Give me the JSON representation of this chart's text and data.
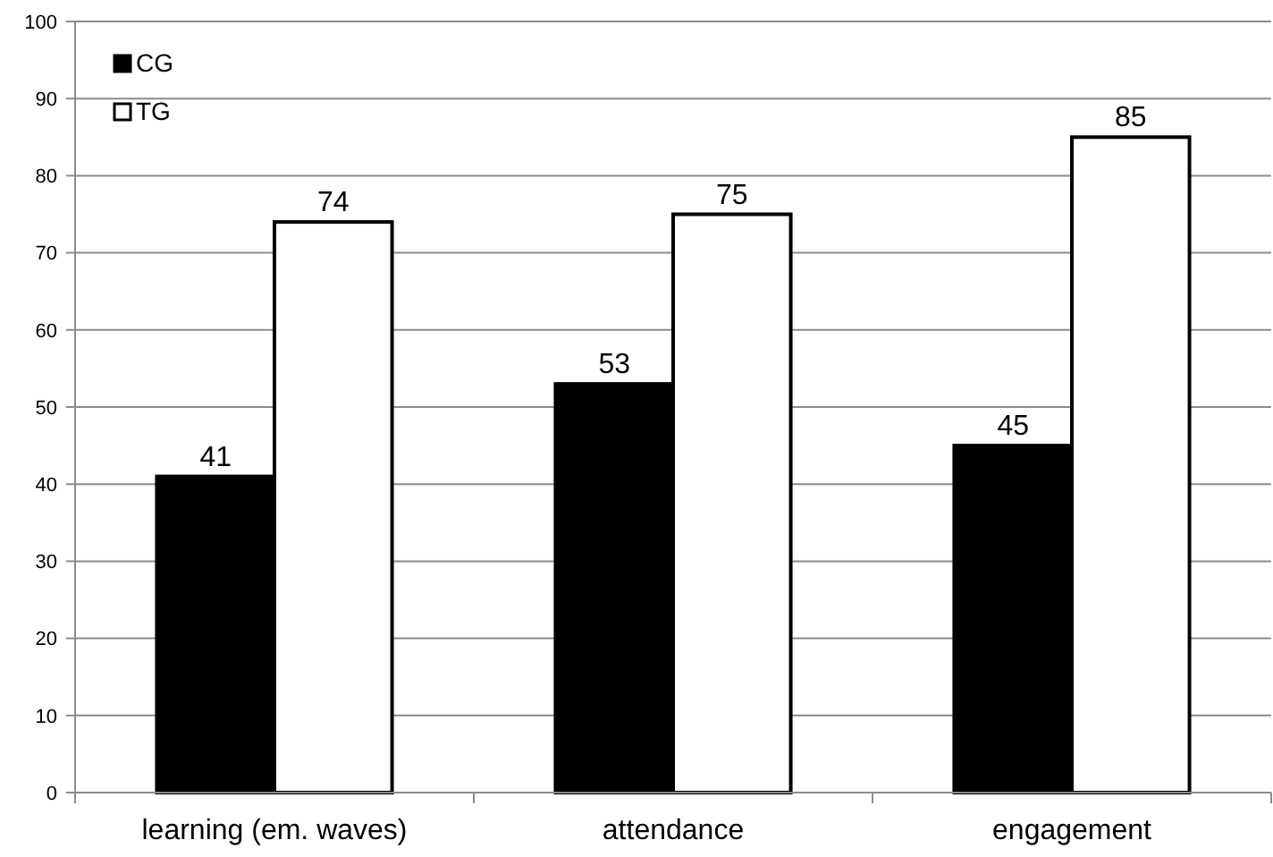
{
  "chart_data": {
    "type": "bar",
    "categories": [
      "learning (em. waves)",
      "attendance",
      "engagement"
    ],
    "series": [
      {
        "name": "CG",
        "color": "#000000",
        "values": [
          41,
          53,
          45
        ]
      },
      {
        "name": "TG",
        "color": "#ffffff",
        "values": [
          74,
          75,
          85
        ]
      }
    ],
    "ylim": [
      0,
      100
    ],
    "yticks": [
      0,
      10,
      20,
      30,
      40,
      50,
      60,
      70,
      80,
      90,
      100
    ],
    "grid": "y",
    "legend": "top left",
    "data_labels": true
  }
}
